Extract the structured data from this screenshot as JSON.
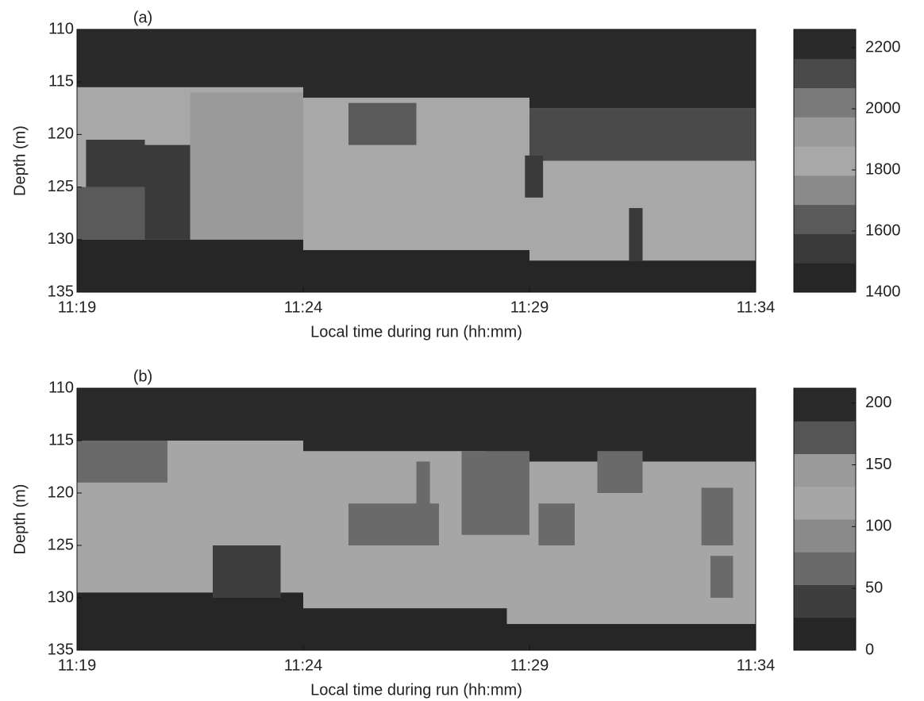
{
  "chart_data": [
    {
      "type": "heatmap",
      "panel_label": "(a)",
      "xlabel": "Local time during run (hh:mm)",
      "ylabel": "Depth (m)",
      "xlim": [
        679,
        694
      ],
      "xticks": [
        {
          "value": 679,
          "label": "11:19"
        },
        {
          "value": 684,
          "label": "11:24"
        },
        {
          "value": 689,
          "label": "11:29"
        },
        {
          "value": 694,
          "label": "11:34"
        }
      ],
      "ylim": [
        135,
        110
      ],
      "yticks": [
        110,
        115,
        120,
        125,
        130,
        135
      ],
      "clim": [
        1400,
        2260
      ],
      "cticks": [
        1400,
        1600,
        1800,
        2000,
        2200
      ],
      "cmap": [
        "#262626",
        "#3a3a3a",
        "#5a5a5a",
        "#8a8a8a",
        "#a8a8a8",
        "#9a9a9a",
        "#7a7a7a",
        "#4a4a4a",
        "#2a2a2a"
      ],
      "cells": [
        {
          "x": [
            679,
            694
          ],
          "y": [
            110,
            135
          ],
          "value": 1850
        },
        {
          "x": [
            679,
            684
          ],
          "y": [
            110,
            115.5
          ],
          "value": 2250
        },
        {
          "x": [
            684,
            689
          ],
          "y": [
            110,
            116.5
          ],
          "value": 2250
        },
        {
          "x": [
            689,
            694
          ],
          "y": [
            110,
            117.5
          ],
          "value": 2250
        },
        {
          "x": [
            689,
            694
          ],
          "y": [
            117.5,
            122.5
          ],
          "value": 2100
        },
        {
          "x": [
            679,
            684
          ],
          "y": [
            130,
            135
          ],
          "value": 1450
        },
        {
          "x": [
            684,
            689
          ],
          "y": [
            131,
            135
          ],
          "value": 1450
        },
        {
          "x": [
            689,
            694
          ],
          "y": [
            132,
            135
          ],
          "value": 1450
        },
        {
          "x": [
            681.5,
            684
          ],
          "y": [
            116,
            130
          ],
          "value": 1950
        },
        {
          "x": [
            679.2,
            680.5
          ],
          "y": [
            120.5,
            125
          ],
          "value": 1550
        },
        {
          "x": [
            679,
            680.5
          ],
          "y": [
            125,
            130
          ],
          "value": 1650
        },
        {
          "x": [
            680.5,
            681.5
          ],
          "y": [
            121,
            130
          ],
          "value": 1500
        },
        {
          "x": [
            685,
            686.5
          ],
          "y": [
            117,
            121
          ],
          "value": 1600
        },
        {
          "x": [
            688.9,
            689.3
          ],
          "y": [
            122,
            126
          ],
          "value": 1550
        },
        {
          "x": [
            691.2,
            691.5
          ],
          "y": [
            127,
            132
          ],
          "value": 1550
        }
      ]
    },
    {
      "type": "heatmap",
      "panel_label": "(b)",
      "xlabel": "Local time during run (hh:mm)",
      "ylabel": "Depth (m)",
      "xlim": [
        679,
        694
      ],
      "xticks": [
        {
          "value": 679,
          "label": "11:19"
        },
        {
          "value": 684,
          "label": "11:24"
        },
        {
          "value": 689,
          "label": "11:29"
        },
        {
          "value": 694,
          "label": "11:34"
        }
      ],
      "ylim": [
        135,
        110
      ],
      "yticks": [
        110,
        115,
        120,
        125,
        130,
        135
      ],
      "clim": [
        0,
        212
      ],
      "cticks": [
        0,
        50,
        100,
        150,
        200
      ],
      "cmap": [
        "#262626",
        "#3e3e3e",
        "#6a6a6a",
        "#8a8a8a",
        "#a6a6a6",
        "#9a9a9a",
        "#555555",
        "#2a2a2a"
      ],
      "cells": [
        {
          "x": [
            679,
            694
          ],
          "y": [
            110,
            135
          ],
          "value": 110
        },
        {
          "x": [
            679,
            684
          ],
          "y": [
            110,
            115
          ],
          "value": 200
        },
        {
          "x": [
            684,
            688
          ],
          "y": [
            110,
            116
          ],
          "value": 200
        },
        {
          "x": [
            688,
            694
          ],
          "y": [
            110,
            117
          ],
          "value": 200
        },
        {
          "x": [
            679,
            684
          ],
          "y": [
            129.5,
            135
          ],
          "value": 15
        },
        {
          "x": [
            684,
            688.5
          ],
          "y": [
            131,
            135
          ],
          "value": 15
        },
        {
          "x": [
            688.5,
            694
          ],
          "y": [
            132.5,
            135
          ],
          "value": 15
        },
        {
          "x": [
            682,
            684
          ],
          "y": [
            116,
            125
          ],
          "value": 130
        },
        {
          "x": [
            679,
            681
          ],
          "y": [
            115,
            119
          ],
          "value": 75
        },
        {
          "x": [
            682,
            683.5
          ],
          "y": [
            125,
            130
          ],
          "value": 40
        },
        {
          "x": [
            685,
            687
          ],
          "y": [
            121,
            125
          ],
          "value": 75
        },
        {
          "x": [
            686.5,
            686.8
          ],
          "y": [
            117,
            125
          ],
          "value": 75
        },
        {
          "x": [
            687.5,
            689
          ],
          "y": [
            116,
            124
          ],
          "value": 75
        },
        {
          "x": [
            689.2,
            690
          ],
          "y": [
            121,
            125
          ],
          "value": 60
        },
        {
          "x": [
            690.5,
            691.5
          ],
          "y": [
            116,
            120
          ],
          "value": 75
        },
        {
          "x": [
            692.8,
            693.5
          ],
          "y": [
            119.5,
            125
          ],
          "value": 70
        },
        {
          "x": [
            693,
            693.5
          ],
          "y": [
            126,
            130
          ],
          "value": 60
        }
      ]
    }
  ]
}
